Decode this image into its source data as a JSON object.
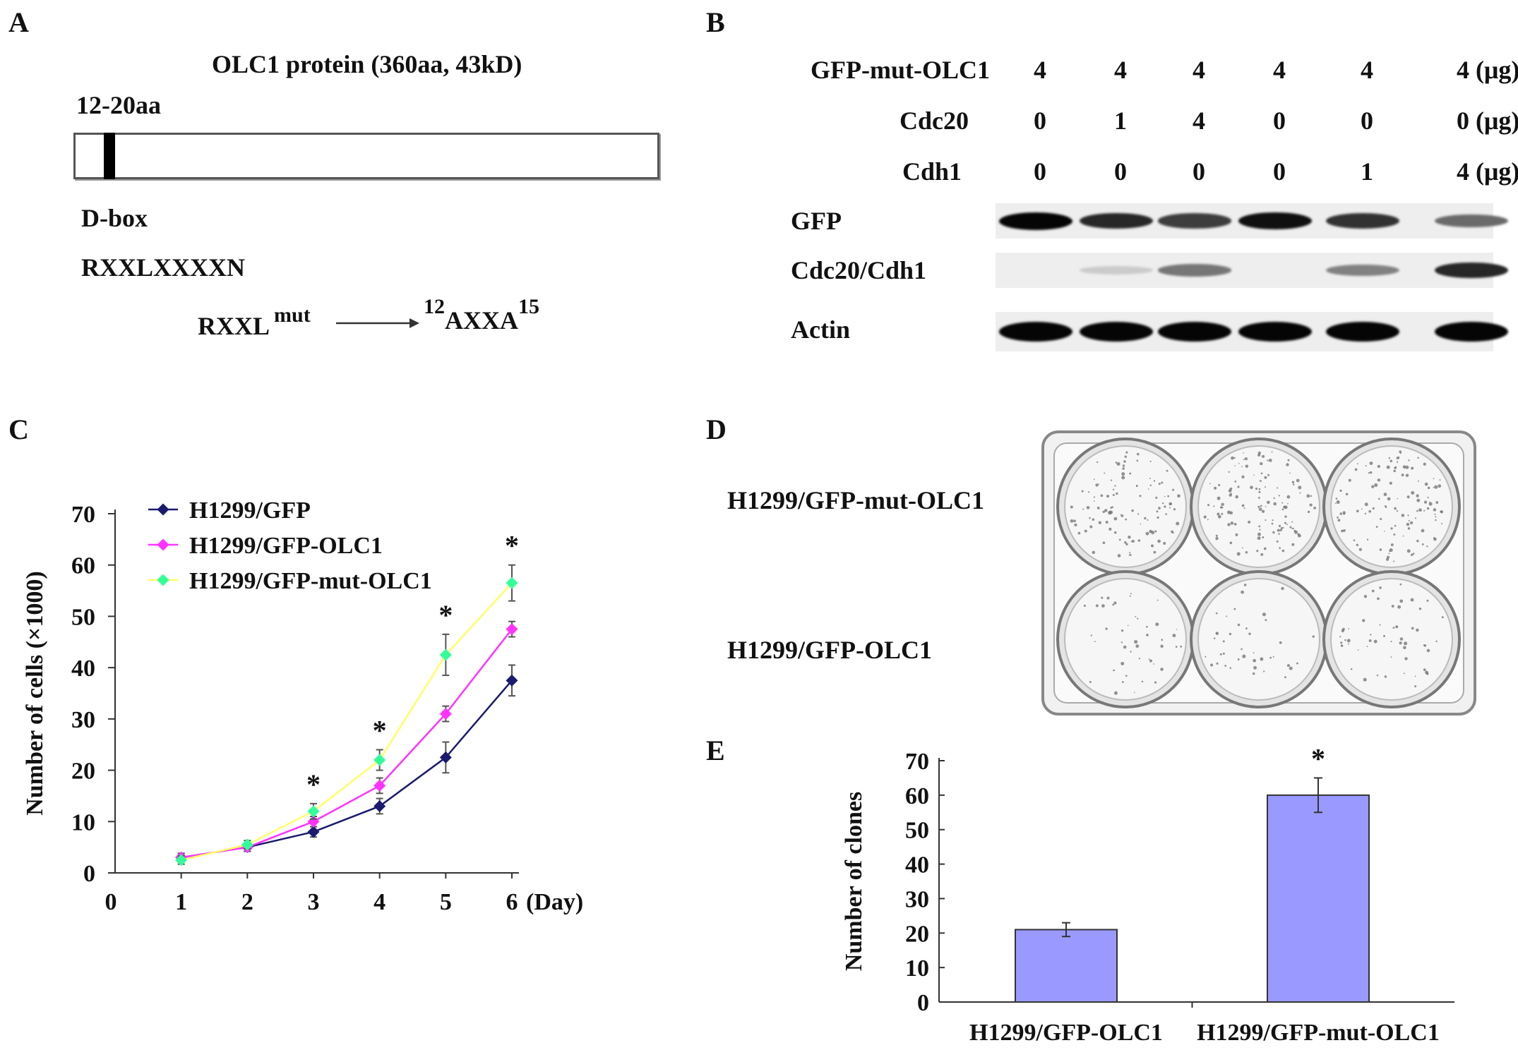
{
  "panels": {
    "A": "A",
    "B": "B",
    "C": "C",
    "D": "D",
    "E": "E"
  },
  "panelA": {
    "title": "OLC1 protein (360aa, 43kD)",
    "region_label": "12-20aa",
    "dbox_label": "D-box",
    "motif": "RXXLXXXXN",
    "mut_left": "RXXL",
    "mut_sup": "mut",
    "mut_right_pre": "12",
    "mut_right_main": "AXXA",
    "mut_right_sup": "15"
  },
  "panelB": {
    "rows": [
      {
        "label": "GFP-mut-OLC1",
        "values": [
          "4",
          "4",
          "4",
          "4",
          "4",
          "4 (μg)"
        ]
      },
      {
        "label": "Cdc20",
        "values": [
          "0",
          "1",
          "4",
          "0",
          "0",
          "0 (μg)"
        ]
      },
      {
        "label": "Cdh1",
        "values": [
          "0",
          "0",
          "0",
          "0",
          "1",
          "4 (μg)"
        ]
      }
    ],
    "blots": [
      {
        "label": "GFP",
        "bands": [
          1.0,
          0.85,
          0.75,
          0.95,
          0.8,
          0.55
        ]
      },
      {
        "label": "Cdc20/Cdh1",
        "bands": [
          0.0,
          0.12,
          0.5,
          0.0,
          0.45,
          0.85
        ]
      },
      {
        "label": "Actin",
        "bands": [
          1.0,
          1.0,
          1.0,
          1.0,
          1.0,
          1.0
        ]
      }
    ]
  },
  "panelD": {
    "row1_label": "H1299/GFP-mut-OLC1",
    "row2_label": "H1299/GFP-OLC1"
  },
  "colors": {
    "gfp": "#1a1a6e",
    "olc1": "#ff33ff",
    "mut": "#33ff99",
    "mut_line": "#ffff66",
    "bar": "#9999ff"
  },
  "chart_data": [
    {
      "type": "line",
      "ylabel": "Number of cells (×1000)",
      "xlabel": "(Day)",
      "x": [
        1,
        2,
        3,
        4,
        5,
        6
      ],
      "xticks": [
        "0",
        "1",
        "2",
        "3",
        "4",
        "5",
        "6"
      ],
      "yticks": [
        "0",
        "10",
        "20",
        "30",
        "40",
        "50",
        "60",
        "70"
      ],
      "ylim": [
        0,
        70
      ],
      "series": [
        {
          "name": "H1299/GFP",
          "values": [
            3,
            5,
            8,
            13,
            22.5,
            37.5
          ],
          "errors": [
            0.8,
            0.8,
            1,
            1.5,
            3,
            3
          ]
        },
        {
          "name": "H1299/GFP-OLC1",
          "values": [
            3,
            5,
            10,
            17,
            31,
            47.5
          ],
          "errors": [
            0.8,
            0.8,
            1,
            1.5,
            1.5,
            1.5
          ]
        },
        {
          "name": "H1299/GFP-mut-OLC1",
          "values": [
            2.5,
            5.5,
            12,
            22,
            42.5,
            56.5
          ],
          "errors": [
            0.8,
            0.8,
            1.5,
            2,
            4,
            3.5
          ]
        }
      ],
      "annotations": [
        "*",
        "*",
        "*",
        "*"
      ],
      "annotation_days": [
        3,
        4,
        5,
        6
      ]
    },
    {
      "type": "bar",
      "ylabel": "Number of clones",
      "categories": [
        "H1299/GFP-OLC1",
        "H1299/GFP-mut-OLC1"
      ],
      "values": [
        21,
        60
      ],
      "errors": [
        2,
        5
      ],
      "yticks": [
        "0",
        "10",
        "20",
        "30",
        "40",
        "50",
        "60",
        "70"
      ],
      "ylim": [
        0,
        70
      ],
      "annotation": "*"
    }
  ]
}
